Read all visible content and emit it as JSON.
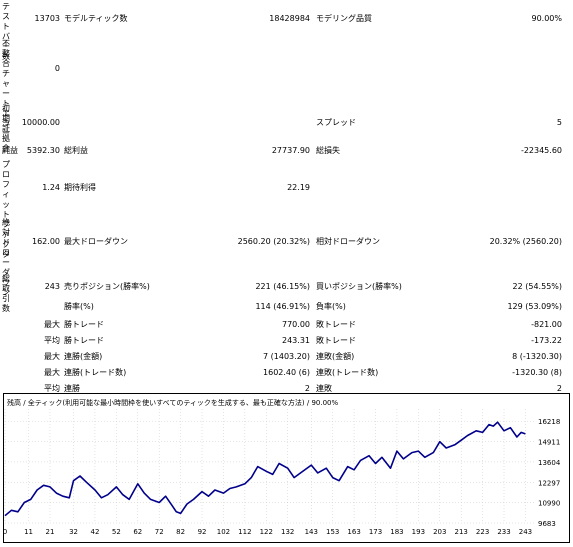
{
  "report": {
    "bars_label": "テストバー数",
    "bars_value": "13703",
    "ticks_label": "モデルティック数",
    "ticks_value": "18428984",
    "quality_label": "モデリング品質",
    "quality_value": "90.00%",
    "mismatch_label": "不整合チャートエラー",
    "mismatch_value": "0",
    "deposit_label": "初期証拠金",
    "deposit_value": "10000.00",
    "spread_label": "スプレッド",
    "spread_value": "5",
    "net_label": "純益",
    "net_value": "5392.30",
    "gross_profit_label": "総利益",
    "gross_profit_value": "27737.90",
    "gross_loss_label": "総損失",
    "gross_loss_value": "-22345.60",
    "pf_label": "プロフィットファクタ",
    "pf_value": "1.24",
    "expected_label": "期待利得",
    "expected_value": "22.19",
    "absdd_label": "絶対ドローダウン",
    "absdd_value": "162.00",
    "maxdd_label": "最大ドローダウン",
    "maxdd_value": "2560.20 (20.32%)",
    "reldd_label": "相対ドローダウン",
    "reldd_value": "20.32% (2560.20)",
    "trades_label": "総取引数",
    "trades_value": "243",
    "short_label": "売りポジション(勝率%)",
    "short_value": "221 (46.15%)",
    "long_label": "買いポジション(勝率%)",
    "long_value": "22 (54.55%)",
    "win_label": "勝率(%)",
    "win_value": "114 (46.91%)",
    "loss_label": "負率(%)",
    "loss_value": "129 (53.09%)",
    "max_label1": "最大",
    "largest_win_label": "勝トレード",
    "largest_win_value": "770.00",
    "largest_loss_label": "敗トレード",
    "largest_loss_value": "-821.00",
    "avg_label1": "平均",
    "avg_win_label": "勝トレード",
    "avg_win_value": "243.31",
    "avg_loss_label": "敗トレード",
    "avg_loss_value": "-173.22",
    "max_label2": "最大",
    "consec_wins_label": "連勝(金額)",
    "consec_wins_value": "7 (1403.20)",
    "consec_losses_label": "連敗(金額)",
    "consec_losses_value": "8 (-1320.30)",
    "max_label3": "最大",
    "consec_profit_label": "連勝(トレード数)",
    "consec_profit_value": "1602.40 (6)",
    "consec_loss_label": "連敗(トレード数)",
    "consec_loss_value": "-1320.30 (8)",
    "avg_label2": "平均",
    "avg_consec_wins_label": "連勝",
    "avg_consec_wins_value": "2",
    "avg_consec_losses_label": "連敗",
    "avg_consec_losses_value": "2"
  },
  "chart_data": {
    "type": "line",
    "title": "残高 / 全ティック(利用可能な最小時間枠を使いすべてのティックを生成する、最も正確な方法) / 90.00%",
    "xlabel": "",
    "ylabel": "",
    "xlim": [
      0,
      247
    ],
    "ylim": [
      9683,
      17000
    ],
    "x_ticks": [
      0,
      11,
      21,
      32,
      42,
      52,
      62,
      72,
      82,
      92,
      102,
      112,
      122,
      132,
      143,
      153,
      163,
      173,
      183,
      193,
      203,
      213,
      223,
      233,
      243
    ],
    "y_ticks": [
      9683,
      10990,
      12297,
      13604,
      14911,
      16218
    ],
    "grid": true,
    "line_color": "#00008b",
    "series": [
      {
        "x": [
          0,
          3,
          6,
          9,
          12,
          15,
          18,
          21,
          24,
          27,
          30,
          32,
          35,
          38,
          42,
          45,
          48,
          52,
          55,
          58,
          62,
          65,
          68,
          72,
          75,
          78,
          80,
          82,
          85,
          88,
          92,
          95,
          98,
          102,
          105,
          108,
          112,
          115,
          118,
          122,
          125,
          128,
          132,
          135,
          138,
          143,
          146,
          150,
          153,
          156,
          160,
          163,
          166,
          170,
          173,
          176,
          180,
          183,
          186,
          190,
          193,
          196,
          200,
          203,
          206,
          210,
          213,
          216,
          220,
          223,
          226,
          228,
          230,
          233,
          236,
          239,
          241,
          243
        ],
        "y": [
          10150,
          10500,
          10400,
          11000,
          11200,
          11800,
          12100,
          12000,
          11600,
          11400,
          11300,
          12400,
          12700,
          12300,
          11800,
          11300,
          11500,
          12000,
          11500,
          11200,
          12200,
          11600,
          11200,
          11000,
          11400,
          10800,
          10400,
          10300,
          10900,
          11200,
          11700,
          11400,
          11800,
          11600,
          11900,
          12000,
          12200,
          12600,
          13300,
          13000,
          12800,
          13500,
          13200,
          12600,
          12900,
          13400,
          12900,
          13200,
          12600,
          12400,
          13300,
          13100,
          13700,
          14000,
          13500,
          13900,
          13200,
          14300,
          13800,
          14200,
          14300,
          13900,
          14200,
          14900,
          14500,
          14700,
          15000,
          15300,
          15600,
          15500,
          16000,
          15900,
          16150,
          15600,
          15800,
          15200,
          15500,
          15400
        ]
      }
    ]
  }
}
